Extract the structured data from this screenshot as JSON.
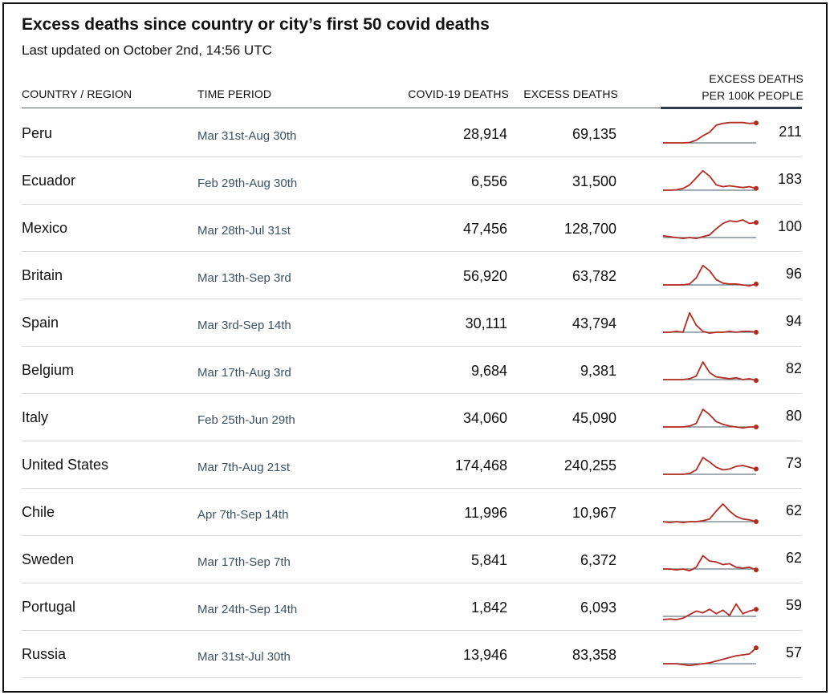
{
  "title": "Excess deaths since country or city’s first 50 covid deaths",
  "subtitle": "Last updated on October 2nd, 14:56 UTC",
  "headers": {
    "country": "COUNTRY / REGION",
    "period": "TIME PERIOD",
    "covid": "COVID-19 DEATHS",
    "excess": "EXCESS DEATHS",
    "per_line1": "EXCESS DEATHS",
    "per_line2": "PER 100K PEOPLE"
  },
  "colors": {
    "line": "#b42b22",
    "baseline": "#6a7a84",
    "rule": "#2f3b48"
  },
  "chart_data": {
    "type": "table",
    "columns": [
      "COUNTRY / REGION",
      "TIME PERIOD",
      "COVID-19 DEATHS",
      "EXCESS DEATHS",
      "EXCESS DEATHS PER 100K PEOPLE"
    ],
    "rows": [
      {
        "country": "Peru",
        "period": "Mar 31st-Aug 30th",
        "covid": "28,914",
        "excess": "69,135",
        "per100k": "211",
        "trend": [
          0,
          0,
          0,
          0,
          0.5,
          3,
          8,
          12,
          20,
          22,
          23,
          23,
          23,
          22,
          22.5
        ]
      },
      {
        "country": "Ecuador",
        "period": "Feb 29th-Aug 30th",
        "covid": "6,556",
        "excess": "31,500",
        "per100k": "183",
        "trend": [
          0,
          0,
          0.5,
          2,
          6,
          14,
          22,
          16,
          6,
          4,
          5,
          4,
          3,
          4,
          2
        ]
      },
      {
        "country": "Mexico",
        "period": "Mar 28th-Jul 31st",
        "covid": "47,456",
        "excess": "128,700",
        "per100k": "100",
        "trend": [
          2,
          1,
          0,
          -1,
          0,
          -1,
          1,
          3,
          10,
          16,
          19,
          18,
          20,
          16,
          17
        ]
      },
      {
        "country": "Britain",
        "period": "Mar 13th-Sep 3rd",
        "covid": "56,920",
        "excess": "63,782",
        "per100k": "96",
        "trend": [
          0,
          0,
          0,
          0,
          1,
          8,
          22,
          16,
          6,
          2,
          1,
          1,
          0,
          -1,
          1
        ]
      },
      {
        "country": "Spain",
        "period": "Mar 3rd-Sep 14th",
        "covid": "30,111",
        "excess": "43,794",
        "per100k": "94",
        "trend": [
          0,
          0,
          1,
          0,
          22,
          8,
          1,
          -1,
          0,
          0,
          1,
          0,
          1,
          1,
          0
        ]
      },
      {
        "country": "Belgium",
        "period": "Mar 17th-Aug 3rd",
        "covid": "9,684",
        "excess": "9,381",
        "per100k": "82",
        "trend": [
          0,
          0,
          0,
          0,
          1,
          4,
          20,
          8,
          3,
          2,
          1,
          2,
          0,
          1,
          -1
        ]
      },
      {
        "country": "Italy",
        "period": "Feb 25th-Jun 29th",
        "covid": "34,060",
        "excess": "45,090",
        "per100k": "80",
        "trend": [
          0,
          0,
          0,
          0,
          1,
          4,
          20,
          14,
          6,
          3,
          1,
          0,
          -1,
          0,
          0
        ]
      },
      {
        "country": "United States",
        "period": "Mar 7th-Aug 21st",
        "covid": "174,468",
        "excess": "240,255",
        "per100k": "73",
        "trend": [
          0,
          0,
          0,
          0,
          1,
          5,
          19,
          14,
          8,
          5,
          6,
          9,
          10,
          8,
          6
        ]
      },
      {
        "country": "Chile",
        "period": "Apr 7th-Sep 14th",
        "covid": "11,996",
        "excess": "10,967",
        "per100k": "62",
        "trend": [
          0,
          -1,
          0,
          -1,
          0,
          0,
          1,
          3,
          12,
          20,
          12,
          6,
          3,
          2,
          0
        ]
      },
      {
        "country": "Sweden",
        "period": "Mar 17th-Sep 7th",
        "covid": "5,841",
        "excess": "6,372",
        "per100k": "62",
        "trend": [
          0,
          0,
          -1,
          0,
          -2,
          2,
          15,
          9,
          8,
          5,
          6,
          2,
          1,
          2,
          -1
        ]
      },
      {
        "country": "Portugal",
        "period": "Mar 24th-Sep 14th",
        "covid": "1,842",
        "excess": "6,093",
        "per100k": "59",
        "trend": [
          -6,
          -3,
          -5,
          -2,
          2,
          6,
          4,
          8,
          3,
          7,
          1,
          14,
          3,
          6,
          8
        ]
      },
      {
        "country": "Russia",
        "period": "Mar 31st-Jul 30th",
        "covid": "13,946",
        "excess": "83,358",
        "per100k": "57",
        "trend": [
          0,
          0,
          0,
          -1,
          -2,
          -1,
          0,
          1,
          3,
          5,
          7,
          9,
          10,
          11,
          18
        ]
      }
    ]
  }
}
